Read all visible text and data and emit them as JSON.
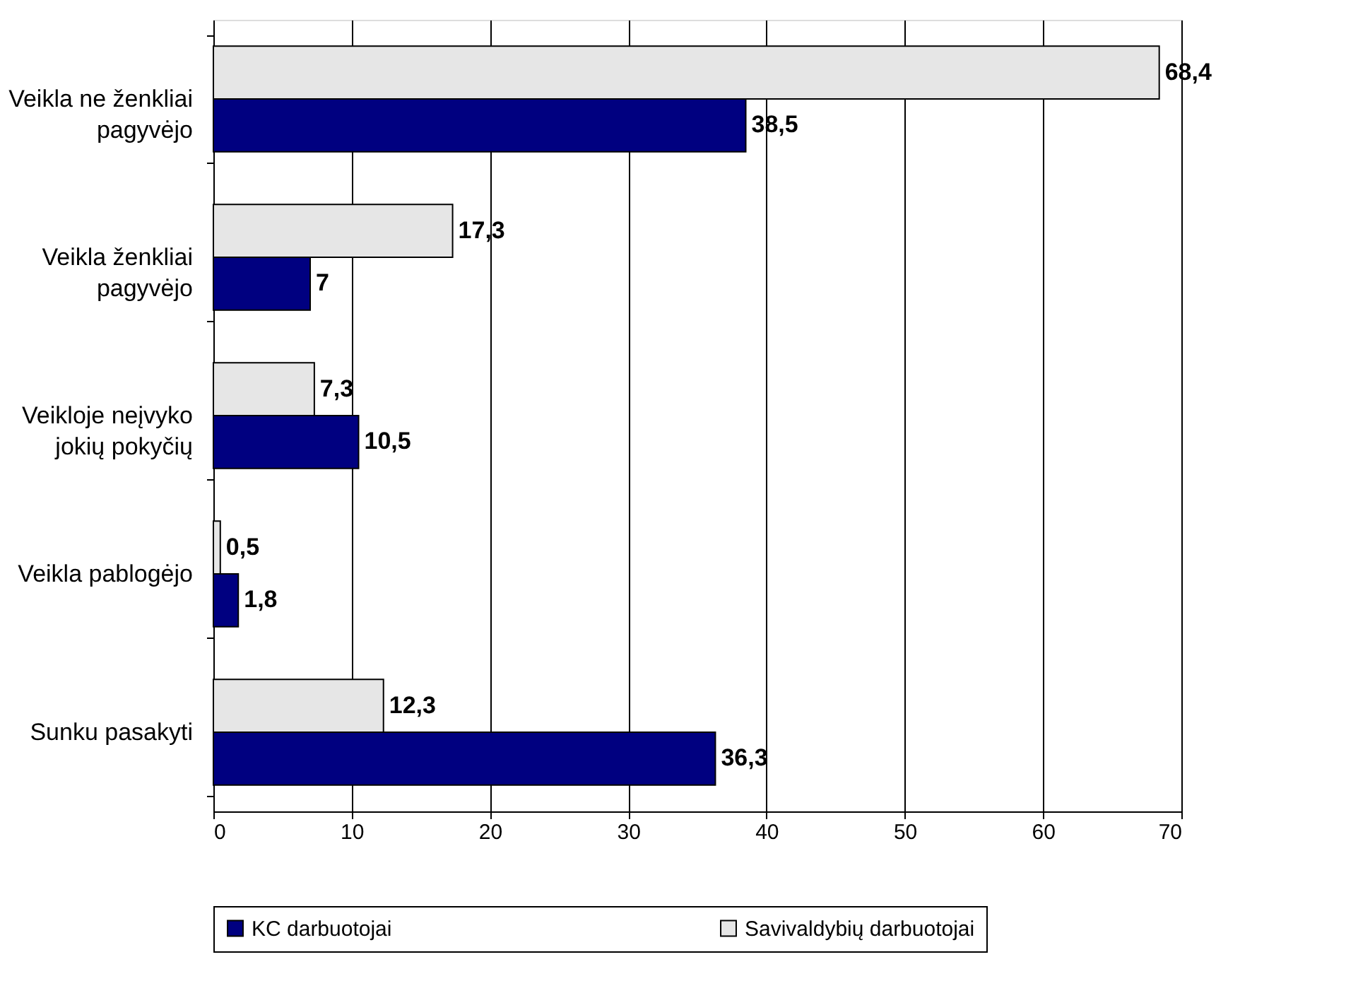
{
  "chart_data": {
    "type": "bar",
    "orientation": "horizontal",
    "categories": [
      "Veikla ne ženkliai pagyvėjo",
      "Veikla ženkliai pagyvėjo",
      "Veikloje neįvyko jokių pokyčių",
      "Veikla pablogėjo",
      "Sunku pasakyti"
    ],
    "series": [
      {
        "name": "KC darbuotojai",
        "color": "#000080",
        "values": [
          38.5,
          7,
          10.5,
          1.8,
          36.3
        ],
        "value_labels": [
          "38,5",
          "7",
          "10,5",
          "1,8",
          "36,3"
        ]
      },
      {
        "name": "Savivaldybių darbuotojai",
        "color": "#e6e6e6",
        "values": [
          68.4,
          17.3,
          7.3,
          0.5,
          12.3
        ],
        "value_labels": [
          "68,4",
          "17,3",
          "7,3",
          "0,5",
          "12,3"
        ]
      }
    ],
    "xlim": [
      0,
      70
    ],
    "xticks": [
      0,
      10,
      20,
      30,
      40,
      50,
      60,
      70
    ],
    "grid": "x",
    "legend": "bottom"
  }
}
